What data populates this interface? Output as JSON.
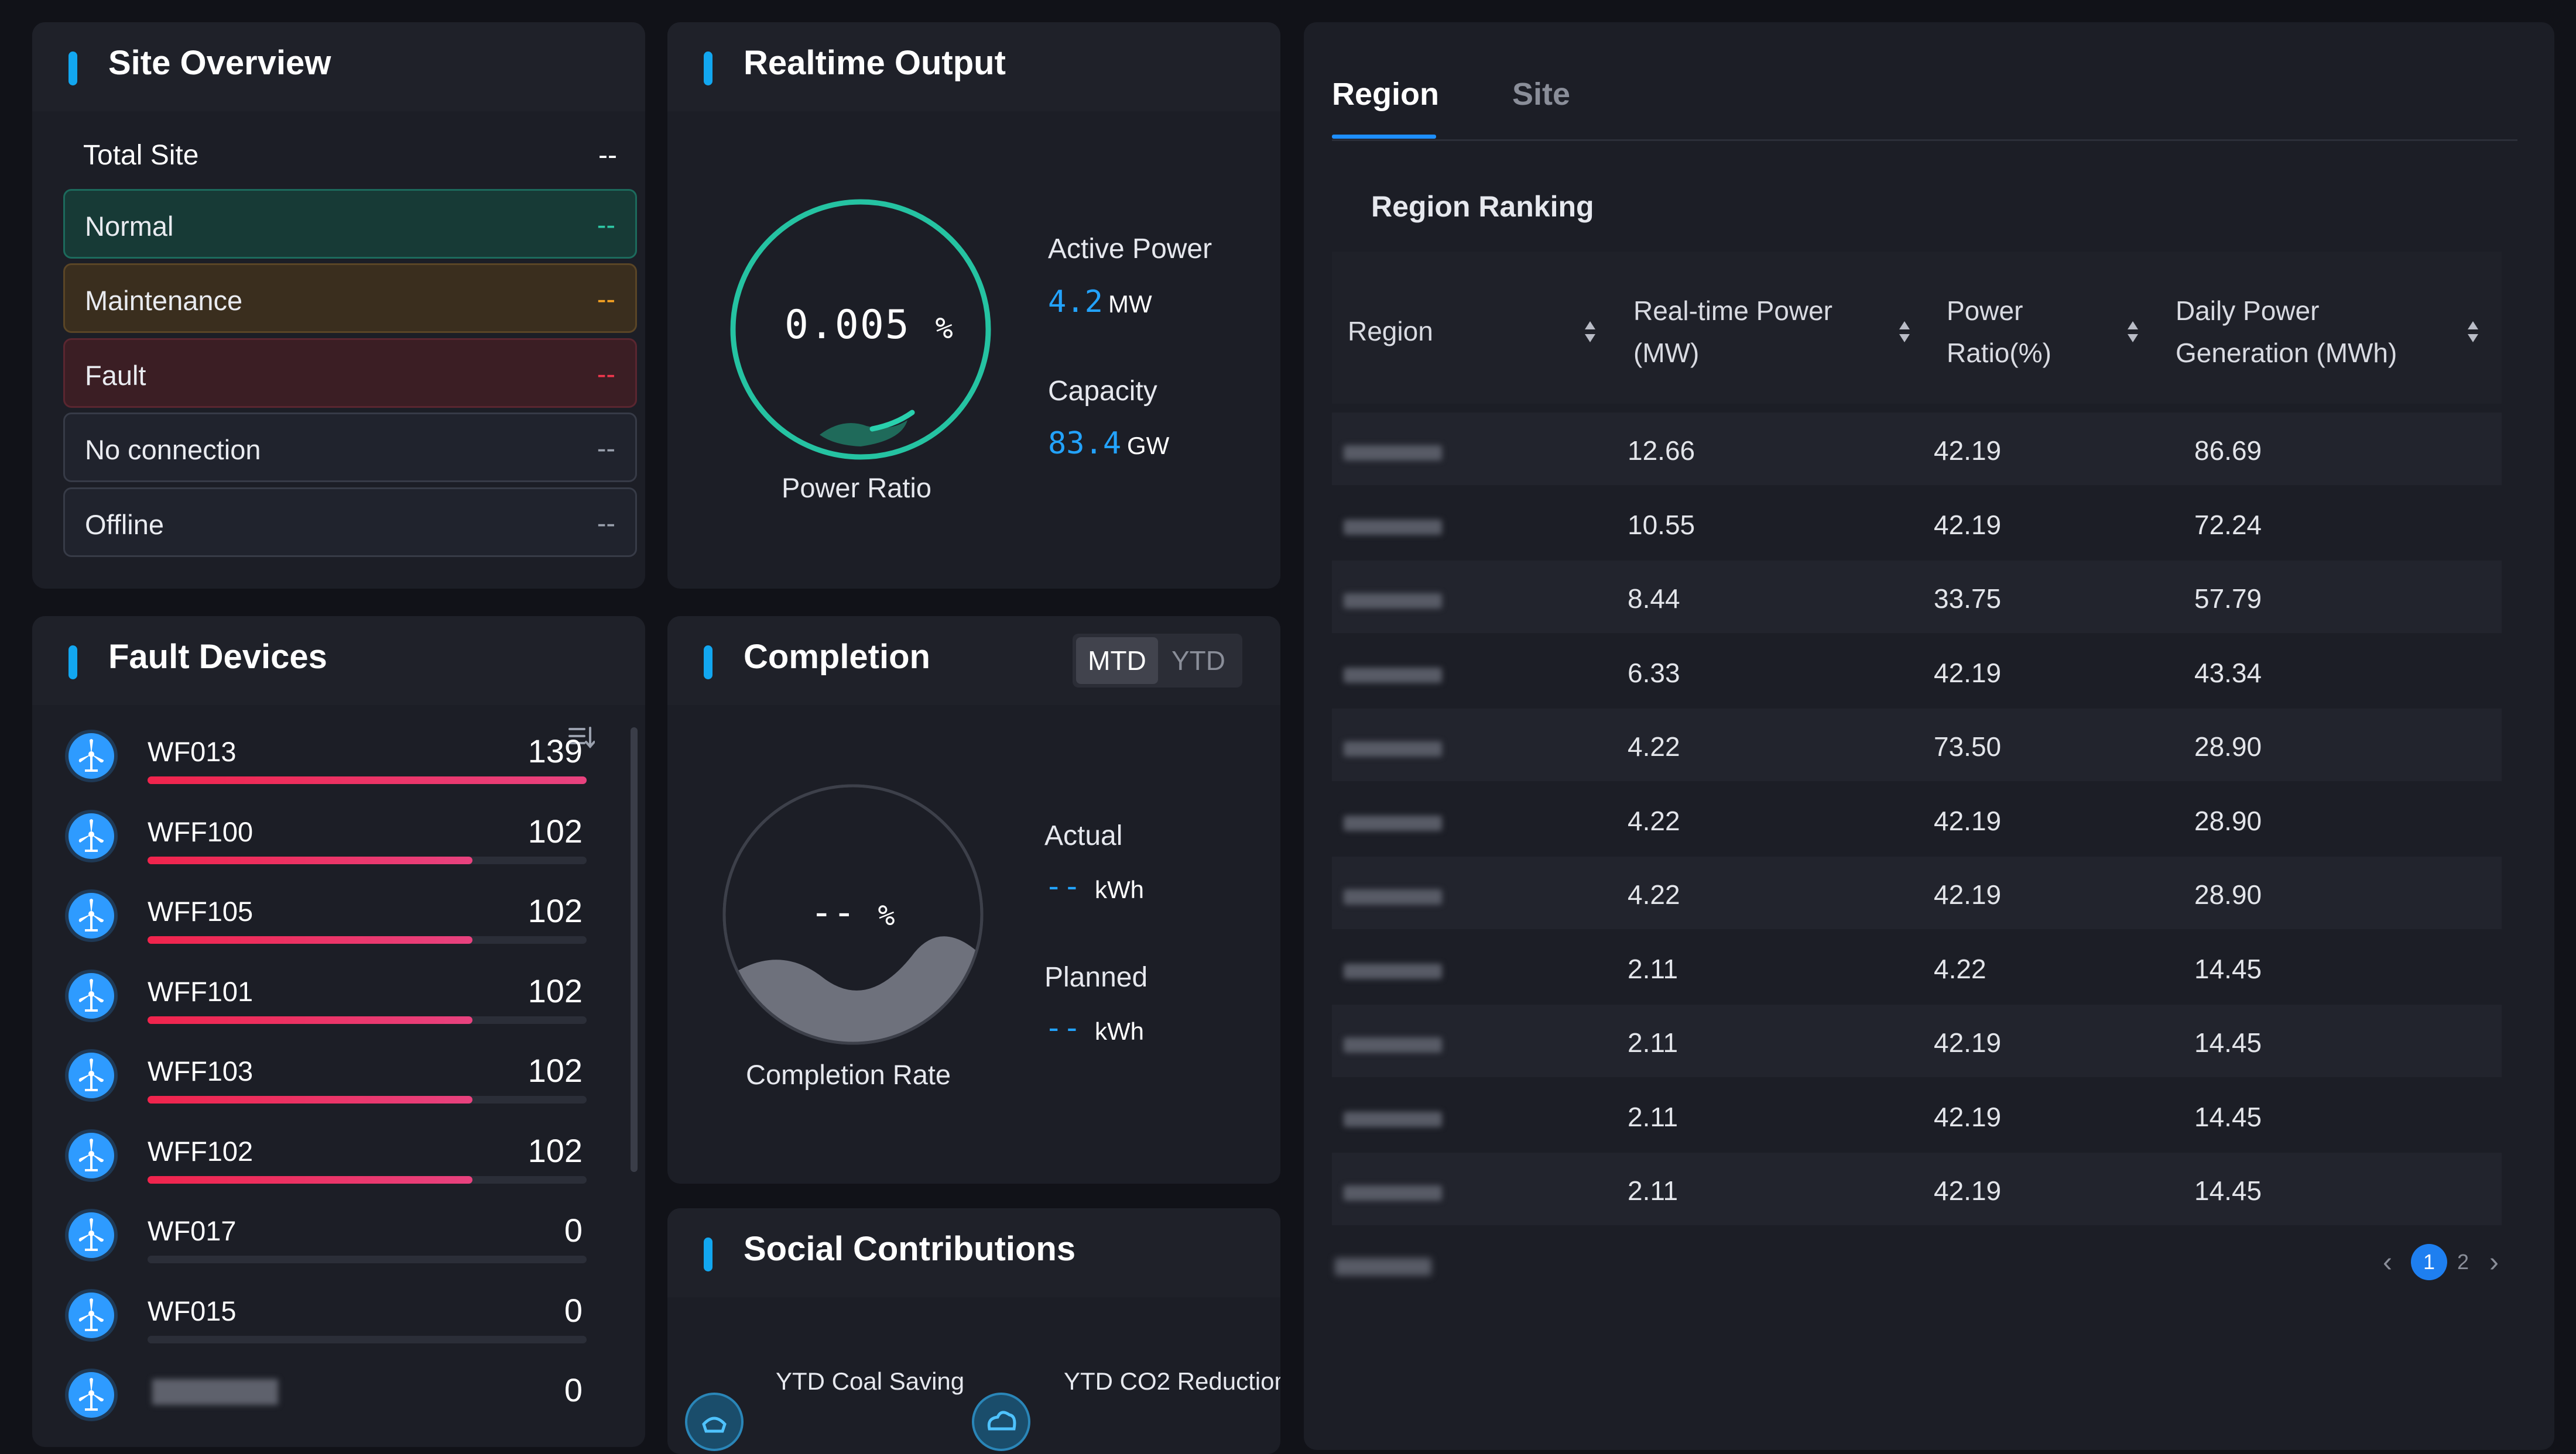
{
  "site_overview": {
    "title": "Site Overview",
    "total": {
      "label": "Total Site",
      "value": "--"
    },
    "rows": [
      {
        "label": "Normal",
        "value": "--",
        "bg": "#173a36",
        "border": "#1c6a5c",
        "color": "#2ec7a5"
      },
      {
        "label": "Maintenance",
        "value": "--",
        "bg": "#3a2e1e",
        "border": "#5a4526",
        "color": "#f6a323"
      },
      {
        "label": "Fault",
        "value": "--",
        "bg": "#3b1e24",
        "border": "#5a2630",
        "color": "#f0374d"
      },
      {
        "label": "No connection",
        "value": "--",
        "bg": "#20232d",
        "border": "#373b47",
        "color": "#9aa0ad"
      },
      {
        "label": "Offline",
        "value": "--",
        "bg": "#20232d",
        "border": "#373b47",
        "color": "#9aa0ad"
      }
    ]
  },
  "realtime": {
    "title": "Realtime Output",
    "ratio_value": "0.005",
    "ratio_unit": "%",
    "ratio_label": "Power Ratio",
    "active_power": {
      "label": "Active Power",
      "value": "4.2",
      "unit": "MW"
    },
    "capacity": {
      "label": "Capacity",
      "value": "83.4",
      "unit": "GW"
    }
  },
  "completion": {
    "title": "Completion",
    "toggle": [
      "MTD",
      "YTD"
    ],
    "rate_value": "--",
    "rate_unit": "%",
    "rate_label": "Completion Rate",
    "actual": {
      "label": "Actual",
      "value": "--",
      "unit": "kWh"
    },
    "planned": {
      "label": "Planned",
      "value": "--",
      "unit": "kWh"
    }
  },
  "fault_devices": {
    "title": "Fault Devices",
    "items": [
      {
        "name": "WF013",
        "count": "139",
        "fill": 1.0
      },
      {
        "name": "WFF100",
        "count": "102",
        "fill": 0.74
      },
      {
        "name": "WFF105",
        "count": "102",
        "fill": 0.74
      },
      {
        "name": "WFF101",
        "count": "102",
        "fill": 0.74
      },
      {
        "name": "WFF103",
        "count": "102",
        "fill": 0.74
      },
      {
        "name": "WFF102",
        "count": "102",
        "fill": 0.74
      },
      {
        "name": "WF017",
        "count": "0",
        "fill": 0
      },
      {
        "name": "WF015",
        "count": "0",
        "fill": 0
      },
      {
        "name": "",
        "count": "0",
        "fill": 0
      }
    ]
  },
  "social": {
    "title": "Social Contributions",
    "coal_label": "YTD Coal Saving",
    "co2_label": "YTD CO2 Reduction"
  },
  "ranking": {
    "tabs": [
      "Region",
      "Site"
    ],
    "subtitle": "Region Ranking",
    "headers": [
      [
        "Region"
      ],
      [
        "Real-time Power",
        "(MW)"
      ],
      [
        "Power",
        "Ratio(%)"
      ],
      [
        "Daily Power",
        "Generation (MWh)"
      ]
    ],
    "rows": [
      [
        "12.66",
        "42.19",
        "86.69"
      ],
      [
        "10.55",
        "42.19",
        "72.24"
      ],
      [
        "8.44",
        "33.75",
        "57.79"
      ],
      [
        "6.33",
        "42.19",
        "43.34"
      ],
      [
        "4.22",
        "73.50",
        "28.90"
      ],
      [
        "4.22",
        "42.19",
        "28.90"
      ],
      [
        "4.22",
        "42.19",
        "28.90"
      ],
      [
        "2.11",
        "4.22",
        "14.45"
      ],
      [
        "2.11",
        "42.19",
        "14.45"
      ],
      [
        "2.11",
        "42.19",
        "14.45"
      ],
      [
        "2.11",
        "42.19",
        "14.45"
      ]
    ],
    "pager": {
      "prev": "‹",
      "pages": [
        "1",
        "2"
      ],
      "next": "›"
    }
  }
}
